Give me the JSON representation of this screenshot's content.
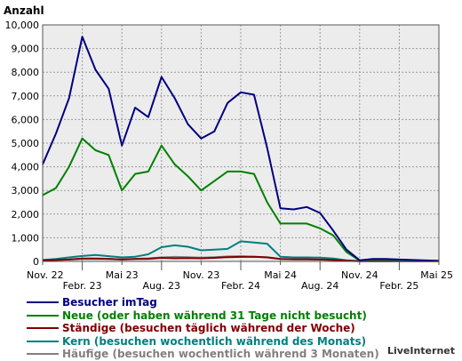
{
  "chart_data": {
    "type": "line",
    "ylabel": "Anzahl",
    "ylim": [
      0,
      10000
    ],
    "yticks": [
      0,
      1000,
      2000,
      3000,
      4000,
      5000,
      6000,
      7000,
      8000,
      9000,
      10000
    ],
    "ytick_labels": [
      "0",
      "1,000",
      "2,000",
      "3,000",
      "4,000",
      "5,000",
      "6,000",
      "7,000",
      "8,000",
      "9,000",
      "10,000"
    ],
    "xlim": [
      0,
      30
    ],
    "xticks": [
      {
        "pos": 0,
        "label": "Nov. 22",
        "row": 1
      },
      {
        "pos": 3,
        "label": "Febr. 23",
        "row": 2
      },
      {
        "pos": 6,
        "label": "Mai 23",
        "row": 1
      },
      {
        "pos": 9,
        "label": "Aug. 23",
        "row": 2
      },
      {
        "pos": 12,
        "label": "Nov. 23",
        "row": 1
      },
      {
        "pos": 15,
        "label": "Febr. 24",
        "row": 2
      },
      {
        "pos": 18,
        "label": "Mai 24",
        "row": 1
      },
      {
        "pos": 21,
        "label": "Aug. 24",
        "row": 2
      },
      {
        "pos": 24,
        "label": "Nov. 24",
        "row": 1
      },
      {
        "pos": 27,
        "label": "Febr. 25",
        "row": 2
      },
      {
        "pos": 30,
        "label": "Mai 25",
        "row": 1
      }
    ],
    "grid": true,
    "legend_position": "bottom",
    "series": [
      {
        "name": "Besucher imTag",
        "color": "#000080",
        "values": [
          4100,
          5400,
          6900,
          9500,
          8100,
          7300,
          4900,
          6500,
          6100,
          7800,
          6900,
          5800,
          5200,
          5500,
          6700,
          7150,
          7050,
          4800,
          2250,
          2200,
          2300,
          2050,
          1300,
          500,
          50,
          100,
          100,
          80,
          60,
          40,
          30
        ]
      },
      {
        "name": "Neue (oder haben während 31 Tage nicht besucht)",
        "color": "#008000",
        "values": [
          2800,
          3100,
          4000,
          5200,
          4700,
          4500,
          3000,
          3700,
          3800,
          4900,
          4100,
          3600,
          3000,
          3400,
          3800,
          3800,
          3700,
          2500,
          1600,
          1600,
          1600,
          1400,
          1100,
          400,
          40,
          80,
          80,
          60,
          50,
          30,
          20
        ]
      },
      {
        "name": "Ständige (besuchen täglich während der Woche)",
        "color": "#800000",
        "values": [
          50,
          60,
          80,
          120,
          120,
          110,
          80,
          100,
          110,
          150,
          130,
          140,
          130,
          150,
          180,
          190,
          200,
          170,
          100,
          90,
          90,
          80,
          60,
          30,
          10,
          10,
          10,
          10,
          10,
          10,
          10
        ]
      },
      {
        "name": "Kern (besuchen wochentlich während des Monats)",
        "color": "#008080",
        "values": [
          60,
          100,
          170,
          230,
          270,
          220,
          170,
          200,
          300,
          600,
          680,
          620,
          470,
          500,
          530,
          850,
          800,
          750,
          200,
          170,
          170,
          160,
          120,
          50,
          20,
          20,
          20,
          20,
          20,
          20,
          20
        ]
      },
      {
        "name": "Häufige (besuchen wochentlich während 3 Monaten)",
        "color": "#808080",
        "values": [
          40,
          60,
          80,
          100,
          110,
          100,
          90,
          110,
          130,
          170,
          190,
          180,
          160,
          180,
          210,
          220,
          200,
          180,
          100,
          90,
          90,
          80,
          60,
          30,
          10,
          10,
          10,
          10,
          10,
          10,
          10
        ]
      }
    ]
  },
  "credit": "LiveInternet"
}
